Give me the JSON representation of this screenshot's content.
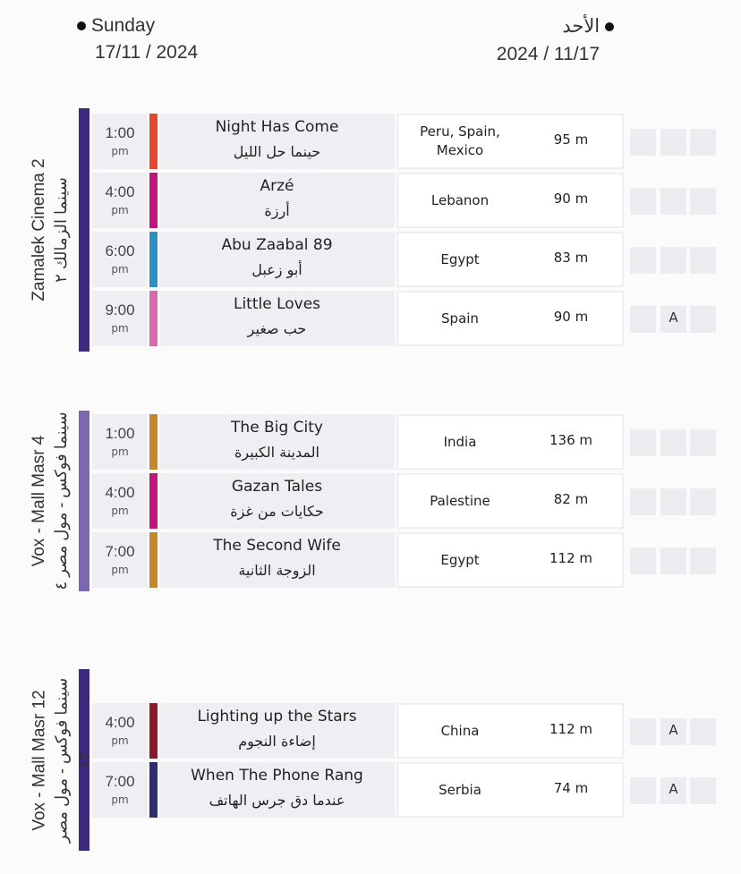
{
  "header": {
    "day_en": "Sunday",
    "date_en": "17/11 / 2024",
    "day_ar": "الأحد",
    "date_ar": "2024 / 11/17"
  },
  "venues": [
    {
      "name_en": "Zamalek Cinema 2",
      "name_ar": "سينما الزمالك ٢",
      "color": "#3d2a7d",
      "screenings": [
        {
          "time": "1:00",
          "period": "pm",
          "title_en": "Night Has Come",
          "title_ar": "حينما حل الليل",
          "country": "Peru, Spain, Mexico",
          "runtime": "95 m",
          "color": "#e8472f"
        },
        {
          "time": "4:00",
          "period": "pm",
          "title_en": "Arzé",
          "title_ar": "أرزة",
          "country": "Lebanon",
          "runtime": "90 m",
          "color": "#c0157a"
        },
        {
          "time": "6:00",
          "period": "pm",
          "title_en": "Abu Zaabal 89",
          "title_ar": "أبو زعبل",
          "country": "Egypt",
          "runtime": "83 m",
          "color": "#2d8fc4"
        },
        {
          "time": "9:00",
          "period": "pm",
          "title_en": "Little Loves",
          "title_ar": "حب صغير",
          "country": "Spain",
          "runtime": "90 m",
          "color": "#d66aab",
          "badge": "A"
        }
      ]
    },
    {
      "name_en": "Vox - Mall Masr 4",
      "name_ar": "سينما فوكس - مول مصر ٤",
      "color": "#7b68b0",
      "screenings": [
        {
          "time": "1:00",
          "period": "pm",
          "title_en": "The Big City",
          "title_ar": "المدينة الكبيرة",
          "country": "India",
          "runtime": "136 m",
          "color": "#c8862a"
        },
        {
          "time": "4:00",
          "period": "pm",
          "title_en": "Gazan Tales",
          "title_ar": "حكايات من غزة",
          "country": "Palestine",
          "runtime": "82 m",
          "color": "#c0157a"
        },
        {
          "time": "7:00",
          "period": "pm",
          "title_en": "The Second Wife",
          "title_ar": "الزوجة الثانية",
          "country": "Egypt",
          "runtime": "112 m",
          "color": "#c8862a"
        }
      ]
    },
    {
      "name_en": "Vox - Mall Masr 12",
      "name_ar": "سينما فوكس - مول مصر ١٢",
      "color": "#3d2a7d",
      "screenings": [
        {
          "time": "4:00",
          "period": "pm",
          "title_en": "Lighting up the Stars",
          "title_ar": "إضاءة النجوم",
          "country": "China",
          "runtime": "112  m",
          "color": "#8a1a2a",
          "badge": "A"
        },
        {
          "time": "7:00",
          "period": "pm",
          "title_en": "When The Phone Rang",
          "title_ar": "عندما دق جرس الهاتف",
          "country": "Serbia",
          "runtime": "74  m",
          "color": "#2e2d70",
          "badge": "A"
        }
      ]
    }
  ]
}
